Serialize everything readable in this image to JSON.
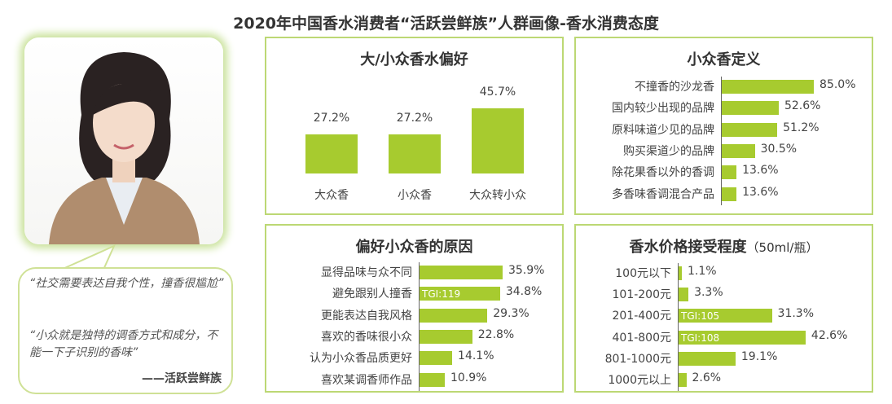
{
  "title": "2020年中国香水消费者“活跃尝鲜族”人群画像-香水消费态度",
  "quotes": {
    "q1": "“社交需要表达自我个性，撞香很尴尬”",
    "q2": "“小众就是独特的调香方式和成分，不能一下子识别的香味”",
    "signature": "——活跃尝鲜族"
  },
  "colors": {
    "bar": "#a7cb2f",
    "border": "#bcd874"
  },
  "chart_data": [
    {
      "type": "bar",
      "title": "大/小众香水偏好",
      "categories": [
        "大众香",
        "小众香",
        "大众转小众"
      ],
      "values": [
        27.2,
        27.2,
        45.7
      ],
      "labels": [
        "27.2%",
        "27.2%",
        "45.7%"
      ],
      "unit": "%"
    },
    {
      "type": "bar",
      "orientation": "horizontal",
      "title": "小众香定义",
      "categories": [
        "不撞香的沙龙香",
        "国内较少出现的品牌",
        "原料味道少见的品牌",
        "购买渠道少的品牌",
        "除花果香以外的香调",
        "多香味香调混合产品"
      ],
      "values": [
        85.0,
        52.6,
        51.2,
        30.5,
        13.6,
        13.6
      ],
      "labels": [
        "85.0%",
        "52.6%",
        "51.2%",
        "30.5%",
        "13.6%",
        "13.6%"
      ],
      "tgi": [
        "",
        "",
        "",
        "",
        "",
        ""
      ]
    },
    {
      "type": "bar",
      "orientation": "horizontal",
      "title": "偏好小众香的原因",
      "categories": [
        "显得品味与众不同",
        "避免跟别人撞香",
        "更能表达自我风格",
        "喜欢的香味很小众",
        "认为小众香品质更好",
        "喜欢某调香师作品"
      ],
      "values": [
        35.9,
        34.8,
        29.3,
        22.8,
        14.1,
        10.9
      ],
      "labels": [
        "35.9%",
        "34.8%",
        "29.3%",
        "22.8%",
        "14.1%",
        "10.9%"
      ],
      "tgi": [
        "",
        "TGI:119",
        "",
        "",
        "",
        ""
      ]
    },
    {
      "type": "bar",
      "orientation": "horizontal",
      "title": "香水价格接受程度",
      "subtitle": "（50ml/瓶）",
      "categories": [
        "100元以下",
        "101-200元",
        "201-400元",
        "401-800元",
        "801-1000元",
        "1000元以上"
      ],
      "values": [
        1.1,
        3.3,
        31.3,
        42.6,
        19.1,
        2.6
      ],
      "labels": [
        "1.1%",
        "3.3%",
        "31.3%",
        "42.6%",
        "19.1%",
        "2.6%"
      ],
      "tgi": [
        "",
        "",
        "TGI:105",
        "TGI:108",
        "",
        ""
      ]
    }
  ]
}
